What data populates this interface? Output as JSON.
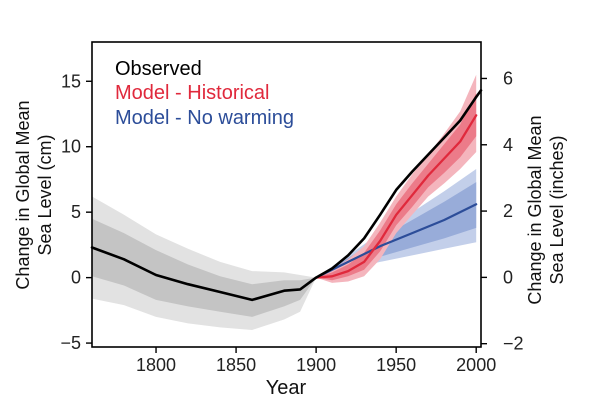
{
  "chart_data": {
    "type": "line",
    "xlabel": "Year",
    "ylabel_left": [
      "Change in Global Mean",
      "Sea Level (cm)"
    ],
    "ylabel_right": [
      "Change in Global Mean",
      "Sea Level (inches)"
    ],
    "xlim": [
      1760,
      2003
    ],
    "ylim": [
      -5.3,
      18
    ],
    "ylim_right_inches": [
      -2.1,
      7.1
    ],
    "x_ticks": [
      1800,
      1850,
      1900,
      1950,
      2000
    ],
    "y_ticks_left": [
      -5,
      0,
      5,
      10,
      15
    ],
    "y_ticks_right": [
      -2,
      0,
      2,
      4,
      6
    ],
    "tick_labels": {
      "x": [
        "1800",
        "1850",
        "1900",
        "1950",
        "2000"
      ],
      "left": [
        "−5",
        "0",
        "5",
        "10",
        "15"
      ],
      "right": [
        "−2",
        "0",
        "2",
        "4",
        "6"
      ]
    },
    "legend_position": "top-left",
    "series": [
      {
        "name": "Observed",
        "color": "#000000",
        "x": [
          1760,
          1780,
          1800,
          1820,
          1840,
          1860,
          1880,
          1890,
          1900,
          1910,
          1920,
          1930,
          1940,
          1950,
          1960,
          1970,
          1980,
          1990,
          2000,
          2003
        ],
        "y": [
          2.3,
          1.4,
          0.2,
          -0.5,
          -1.1,
          -1.7,
          -1.0,
          -0.9,
          0.0,
          0.7,
          1.7,
          3.0,
          4.8,
          6.7,
          8.1,
          9.4,
          10.7,
          12.0,
          13.8,
          14.3
        ],
        "band_inner_upper": [
          4.5,
          3.4,
          2.1,
          1.0,
          0.1,
          -0.5,
          -0.2,
          -0.2,
          0.0
        ],
        "band_inner_lower": [
          0.1,
          -0.6,
          -1.7,
          -2.2,
          -2.6,
          -3.0,
          -2.2,
          -1.7,
          0.0
        ],
        "band_outer_upper": [
          6.2,
          4.8,
          3.3,
          2.2,
          1.2,
          0.5,
          0.4,
          0.2,
          0.0
        ],
        "band_outer_lower": [
          -1.6,
          -2.1,
          -3.0,
          -3.5,
          -3.8,
          -4.0,
          -3.2,
          -2.6,
          0.0
        ]
      },
      {
        "name": "Model - Historical",
        "color": "#e0293c",
        "x": [
          1900,
          1910,
          1920,
          1930,
          1940,
          1950,
          1960,
          1970,
          1980,
          1990,
          2000
        ],
        "y": [
          0.0,
          0.1,
          0.5,
          1.2,
          2.8,
          4.8,
          6.3,
          7.8,
          9.1,
          10.4,
          12.4
        ],
        "band_inner_upper": [
          0.0,
          0.4,
          1.0,
          1.9,
          3.6,
          5.6,
          7.2,
          8.7,
          10.2,
          11.7,
          14.1
        ],
        "band_inner_lower": [
          0.0,
          -0.2,
          0.1,
          0.6,
          2.0,
          4.0,
          5.4,
          6.9,
          8.0,
          9.2,
          10.8
        ],
        "band_outer_upper": [
          0.0,
          0.6,
          1.4,
          2.4,
          4.2,
          6.2,
          7.9,
          9.4,
          11.0,
          12.7,
          15.5
        ],
        "band_outer_lower": [
          0.0,
          -0.4,
          -0.3,
          0.1,
          1.4,
          3.4,
          4.8,
          6.2,
          7.2,
          8.3,
          9.6
        ]
      },
      {
        "name": "Model - No warming",
        "color": "#2c4d99",
        "x": [
          1900,
          1920,
          1940,
          1960,
          1980,
          2000
        ],
        "y": [
          0.0,
          1.2,
          2.4,
          3.4,
          4.4,
          5.6
        ],
        "band_inner_upper": [
          0.0,
          1.5,
          3.0,
          4.4,
          5.8,
          7.3
        ],
        "band_inner_lower": [
          0.0,
          0.8,
          1.6,
          2.3,
          3.0,
          3.8
        ],
        "band_outer_upper": [
          0.0,
          1.7,
          3.4,
          5.0,
          6.6,
          8.3
        ],
        "band_outer_lower": [
          0.0,
          0.6,
          1.2,
          1.7,
          2.2,
          2.7
        ]
      }
    ]
  }
}
